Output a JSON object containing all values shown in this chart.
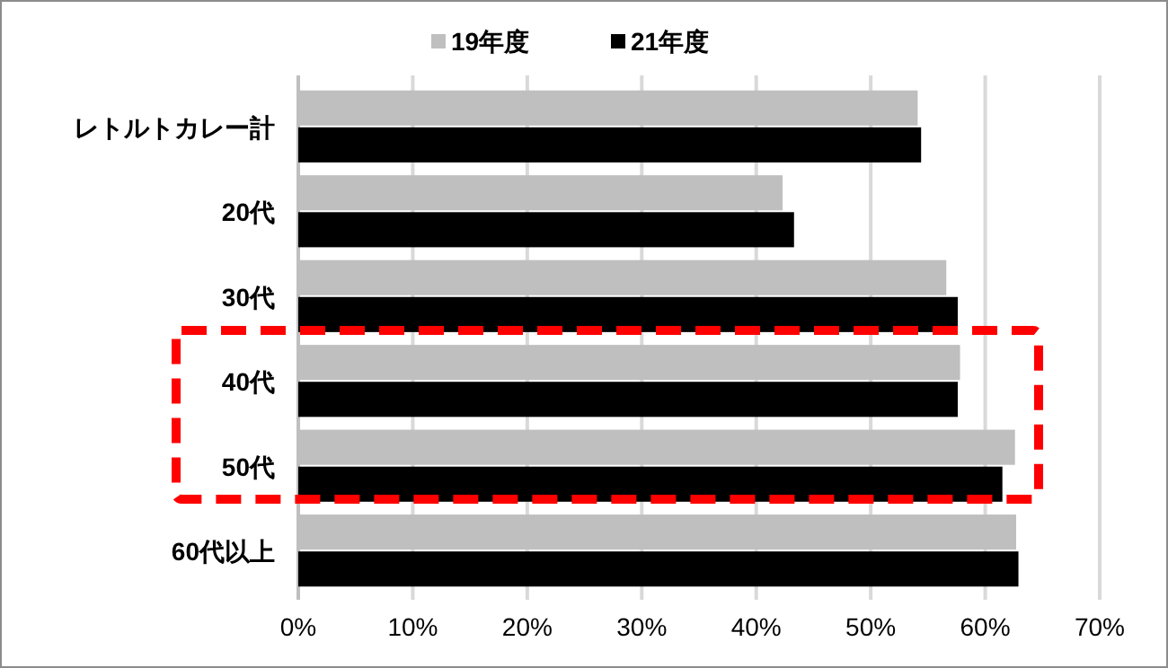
{
  "chart_data": {
    "type": "bar",
    "orientation": "horizontal",
    "categories": [
      "レトルトカレー計",
      "20代",
      "30代",
      "40代",
      "50代",
      "60代以上"
    ],
    "series": [
      {
        "name": "19年度",
        "color": "#bfbfbf",
        "values": [
          54.1,
          42.3,
          56.6,
          57.8,
          62.6,
          62.7
        ]
      },
      {
        "name": "21年度",
        "color": "#000000",
        "values": [
          54.4,
          43.3,
          57.6,
          57.6,
          61.5,
          62.9
        ]
      }
    ],
    "xlim": [
      0,
      70
    ],
    "xticks": [
      {
        "value": 0,
        "label": "0%"
      },
      {
        "value": 10,
        "label": "10%"
      },
      {
        "value": 20,
        "label": "20%"
      },
      {
        "value": 30,
        "label": "30%"
      },
      {
        "value": 40,
        "label": "40%"
      },
      {
        "value": 50,
        "label": "50%"
      },
      {
        "value": 60,
        "label": "60%"
      },
      {
        "value": 70,
        "label": "70%"
      }
    ],
    "grid": "x",
    "legend": "top"
  }
}
